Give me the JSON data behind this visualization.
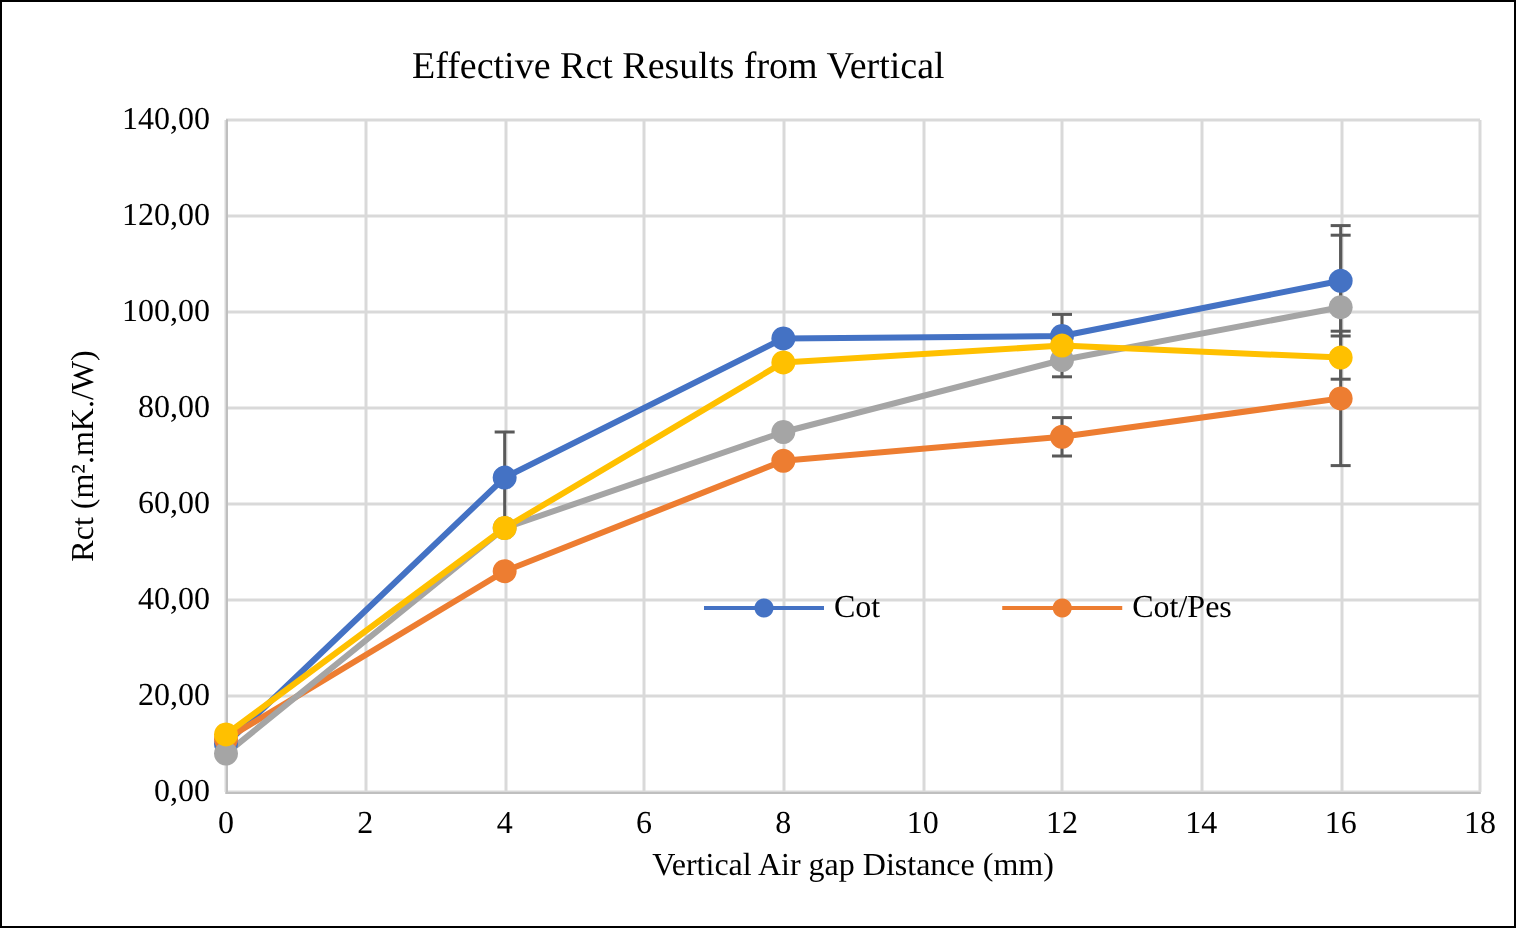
{
  "chart_data": {
    "type": "line",
    "title": "Effective Rct Results from Vertical",
    "xlabel": "Vertical Air gap Distance (mm)",
    "ylabel": "Rct (m².mK./W)",
    "x": [
      0,
      4,
      8,
      12,
      16
    ],
    "series": [
      {
        "name": "Cot",
        "color": "#4472c4",
        "values": [
          10,
          65.5,
          94.5,
          95,
          106.5
        ],
        "errors": [
          null,
          9.5,
          null,
          4.5,
          11.5
        ]
      },
      {
        "name": "Cot/Pes",
        "color": "#ed7d31",
        "values": [
          11,
          46,
          69,
          74,
          82
        ],
        "errors": [
          null,
          null,
          null,
          4,
          14
        ]
      },
      {
        "color": "#a5a5a5",
        "values": [
          8,
          55,
          75,
          90,
          101
        ],
        "errors": [
          null,
          null,
          null,
          3.5,
          15
        ]
      },
      {
        "color": "#ffc000",
        "values": [
          12,
          55,
          89.5,
          93,
          90.5
        ]
      }
    ],
    "xlim": [
      0,
      18
    ],
    "xticks": [
      0,
      2,
      4,
      6,
      8,
      10,
      12,
      14,
      16,
      18
    ],
    "ylim": [
      0,
      140
    ],
    "yticks": [
      {
        "value": 0,
        "label": "0,00"
      },
      {
        "value": 20,
        "label": "20,00"
      },
      {
        "value": 40,
        "label": "40,00"
      },
      {
        "value": 60,
        "label": "60,00"
      },
      {
        "value": 80,
        "label": "80,00"
      },
      {
        "value": 100,
        "label": "100,00"
      },
      {
        "value": 120,
        "label": "120,00"
      },
      {
        "value": 140,
        "label": "140,00"
      }
    ],
    "grid": true,
    "legend": "right",
    "marker": "circle",
    "line_style": "solid"
  }
}
